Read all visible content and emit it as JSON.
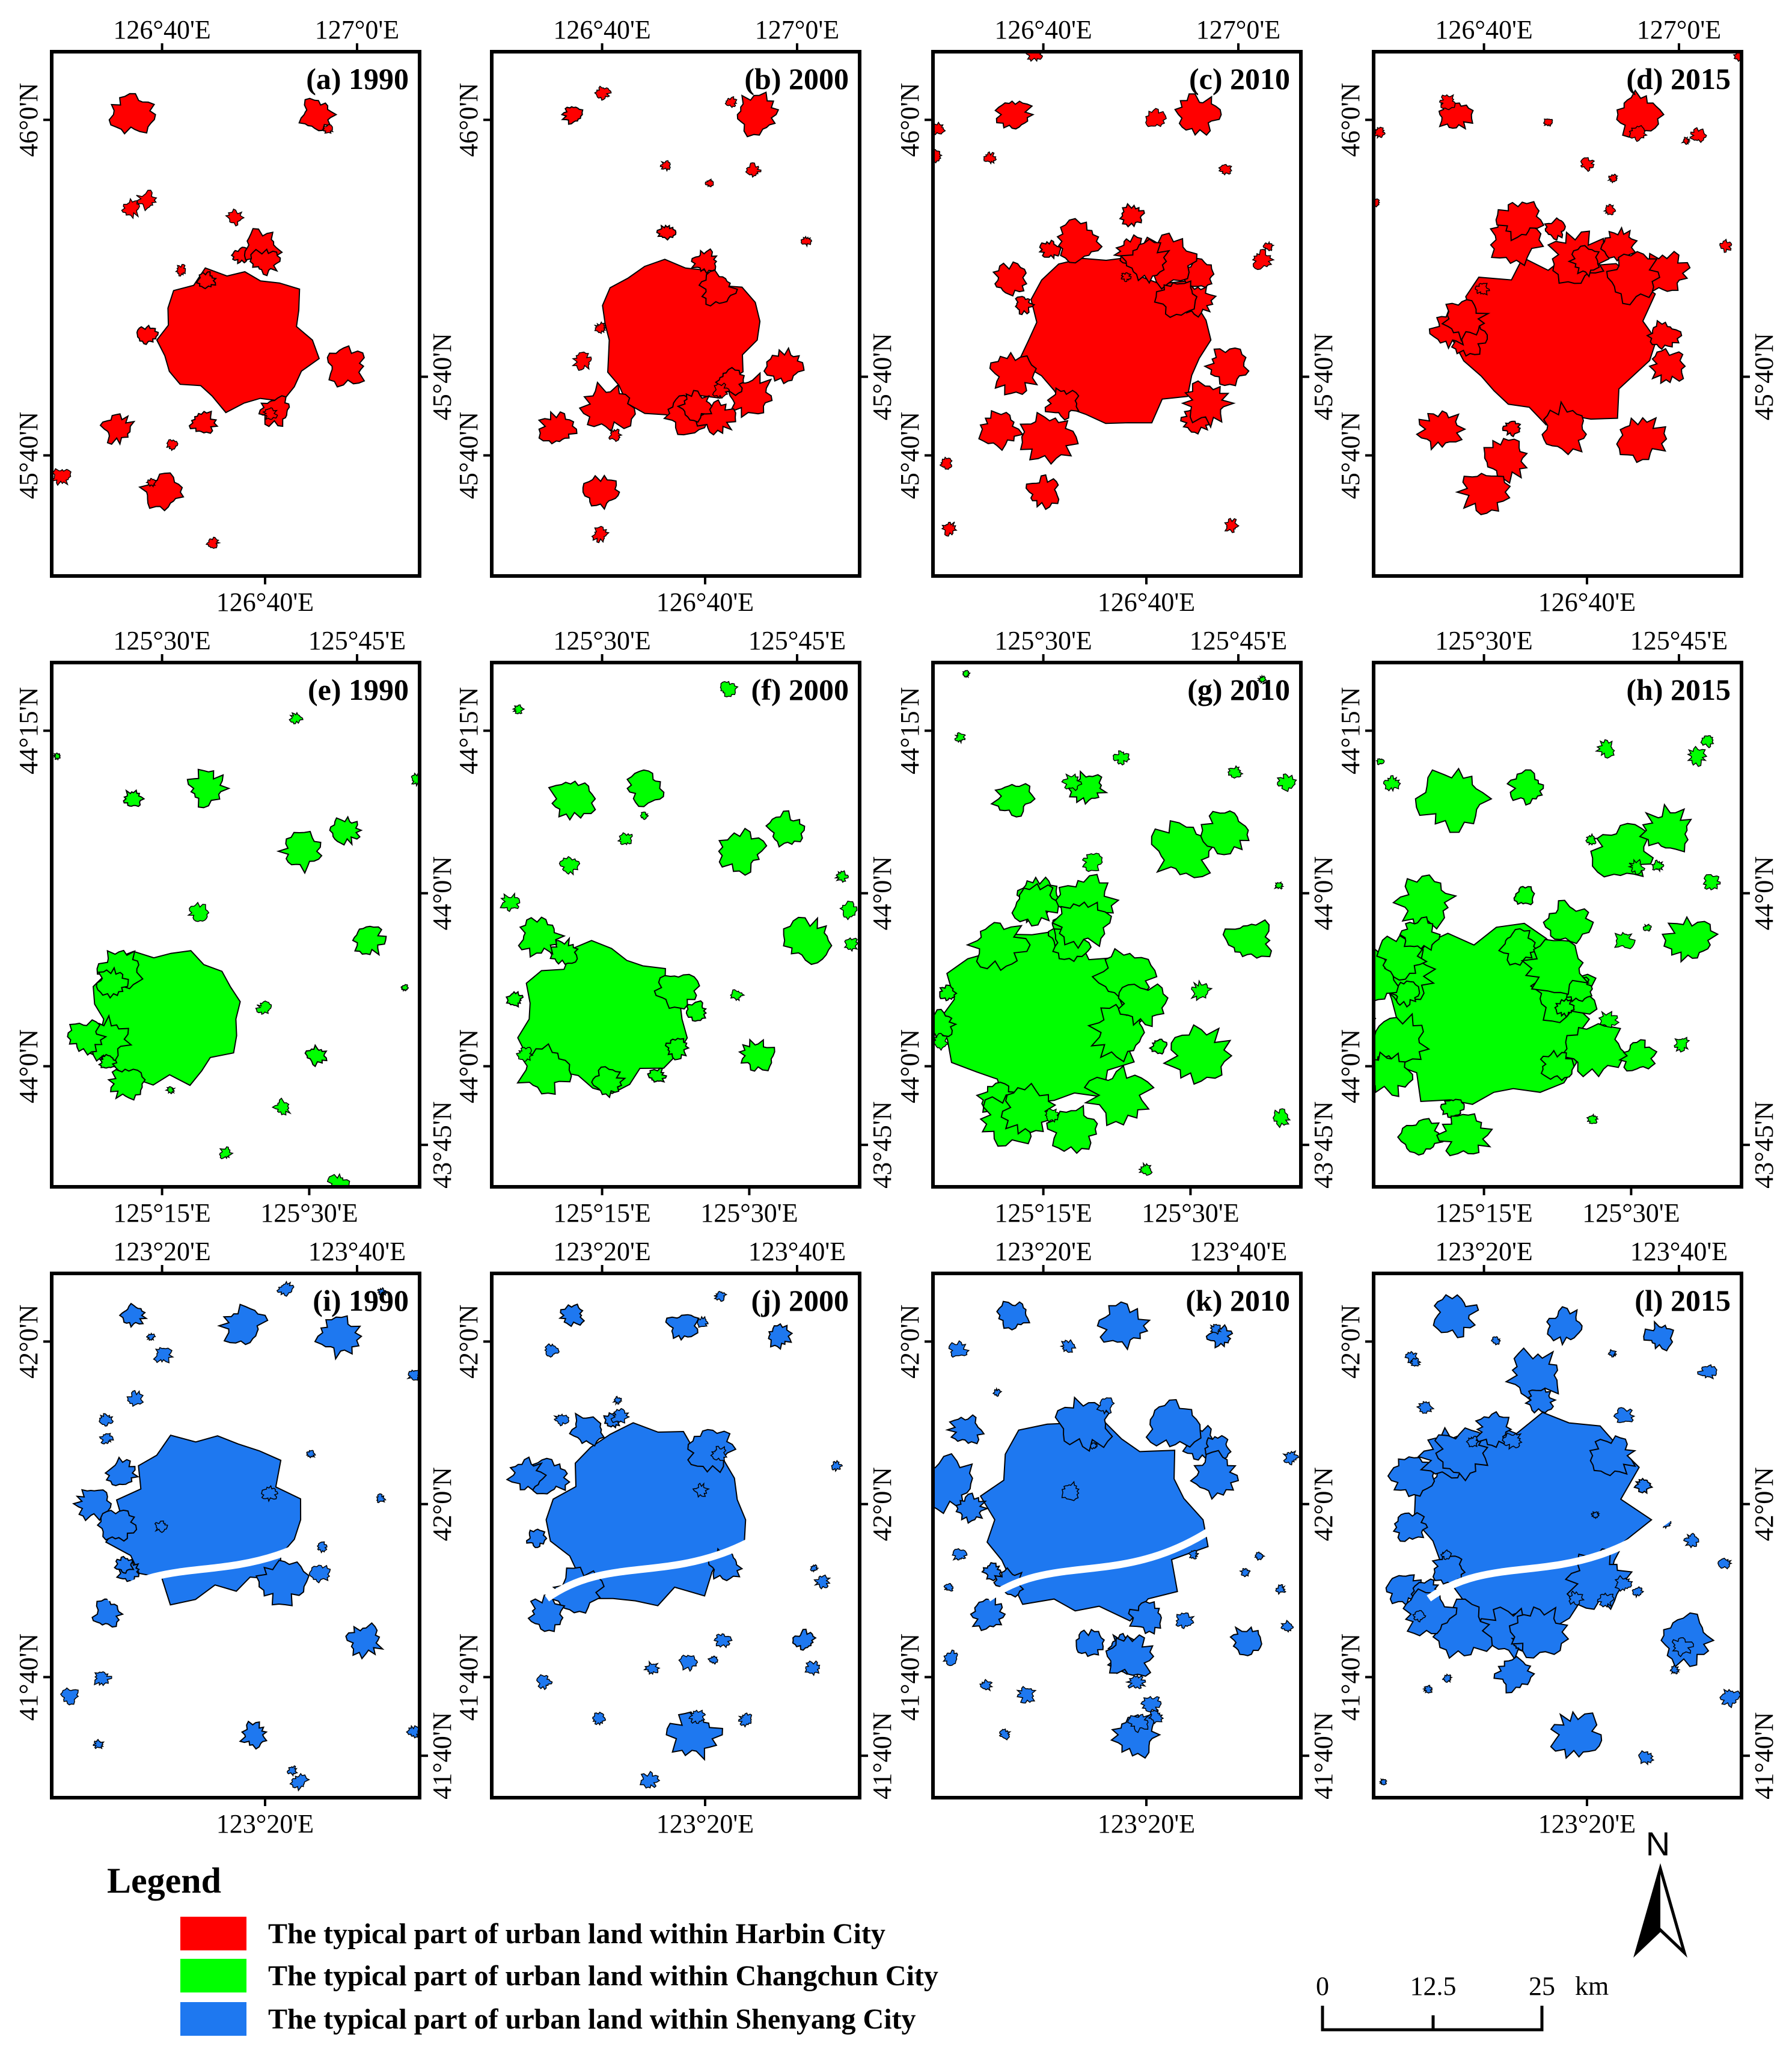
{
  "figure": {
    "rows": [
      {
        "city": "Harbin",
        "color": "#ff0000",
        "top_ticks": [
          "126°40'E",
          "127°0'E"
        ],
        "bottom_ticks": [
          "126°40'E"
        ],
        "left_ticks": [
          "46°0'N",
          "45°40'N"
        ],
        "right_ticks": [
          "45°40'N"
        ],
        "panels": [
          {
            "label": "(a) 1990",
            "growth": 1.0
          },
          {
            "label": "(b) 2000",
            "growth": 1.06
          },
          {
            "label": "(c) 2010",
            "growth": 1.22
          },
          {
            "label": "(d) 2015",
            "growth": 1.28
          }
        ]
      },
      {
        "city": "Changchun",
        "color": "#00ff00",
        "top_ticks": [
          "125°30'E",
          "125°45'E"
        ],
        "bottom_ticks": [
          "125°15'E",
          "125°30'E"
        ],
        "left_ticks": [
          "44°15'N",
          "44°0'N"
        ],
        "right_ticks": [
          "44°0'N",
          "43°45'N"
        ],
        "panels": [
          {
            "label": "(e) 1990",
            "growth": 1.0
          },
          {
            "label": "(f) 2000",
            "growth": 1.08
          },
          {
            "label": "(g) 2010",
            "growth": 1.35
          },
          {
            "label": "(h) 2015",
            "growth": 1.42
          }
        ]
      },
      {
        "city": "Shenyang",
        "color": "#1e78f0",
        "top_ticks": [
          "123°20'E",
          "123°40'E"
        ],
        "bottom_ticks": [
          "123°20'E"
        ],
        "left_ticks": [
          "42°0'N",
          "41°40'N"
        ],
        "right_ticks": [
          "42°0'N",
          "41°40'N"
        ],
        "panels": [
          {
            "label": "(i) 1990",
            "growth": 1.0
          },
          {
            "label": "(j) 2000",
            "growth": 1.05
          },
          {
            "label": "(k) 2010",
            "growth": 1.22
          },
          {
            "label": "(l) 2015",
            "growth": 1.3
          }
        ]
      }
    ]
  },
  "legend": {
    "title": "Legend",
    "items": [
      {
        "label": "The typical part of urban land within Harbin City",
        "color": "#ff0000"
      },
      {
        "label": "The typical part of urban land within Changchun City",
        "color": "#00ff00"
      },
      {
        "label": "The typical part of urban land within Shenyang City",
        "color": "#1e78f0"
      }
    ]
  },
  "north_arrow": {
    "label": "N"
  },
  "scale_bar": {
    "labels": [
      "0",
      "12.5",
      "25"
    ],
    "unit": "km"
  }
}
